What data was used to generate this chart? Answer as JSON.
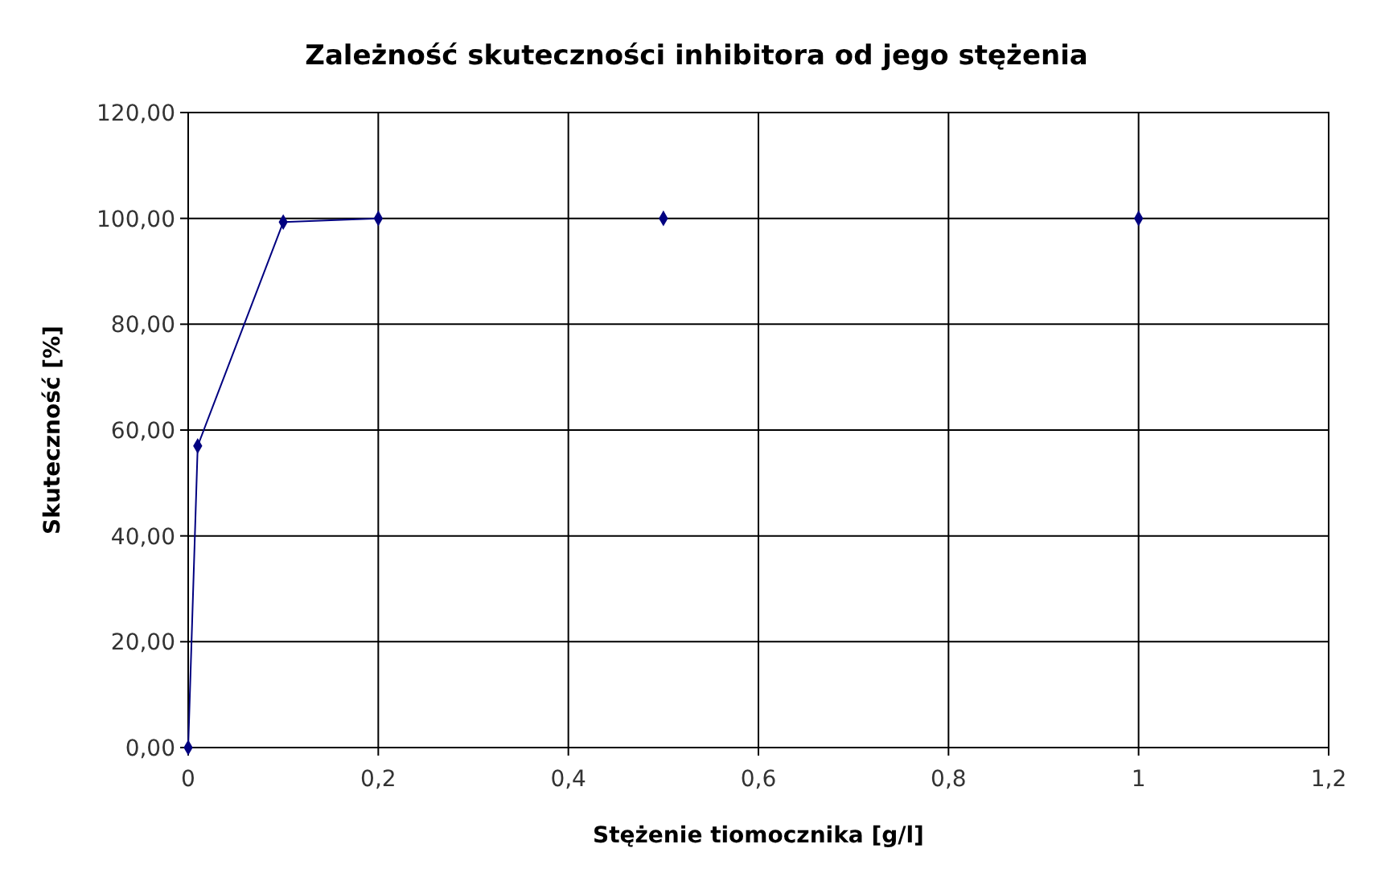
{
  "chart_data": {
    "type": "line",
    "title": "Zależność skuteczności inhibitora od jego stężenia",
    "xlabel": "Stężenie tiomocznika [g/l]",
    "ylabel": "Skuteczność [%]",
    "series": [
      {
        "color": "#000080",
        "x": [
          0,
          0.01,
          0.1,
          0.2
        ],
        "values": [
          0,
          57,
          99.3,
          100
        ]
      },
      {
        "type": "scatter",
        "color": "#000080",
        "x": [
          0.5,
          1
        ],
        "values": [
          100,
          100
        ]
      }
    ],
    "xlim": [
      0,
      1.2
    ],
    "xticks": [
      0,
      {
        "value": 0.2,
        "label": "0,2"
      },
      {
        "value": 0.4,
        "label": "0,4"
      },
      {
        "value": 0.6,
        "label": "0,6"
      },
      {
        "value": 0.8,
        "label": "0,8"
      },
      1,
      {
        "value": 1.2,
        "label": "1,2"
      }
    ],
    "ylim": [
      0,
      120
    ],
    "yticks": [
      {
        "value": 0,
        "label": "0,00"
      },
      {
        "value": 20,
        "label": "20,00"
      },
      {
        "value": 40,
        "label": "40,00"
      },
      {
        "value": 60,
        "label": "60,00"
      },
      {
        "value": 80,
        "label": "80,00"
      },
      {
        "value": 100,
        "label": "100,00"
      },
      {
        "value": 120,
        "label": "120,00"
      }
    ],
    "grid": true,
    "marker": "diamond"
  }
}
